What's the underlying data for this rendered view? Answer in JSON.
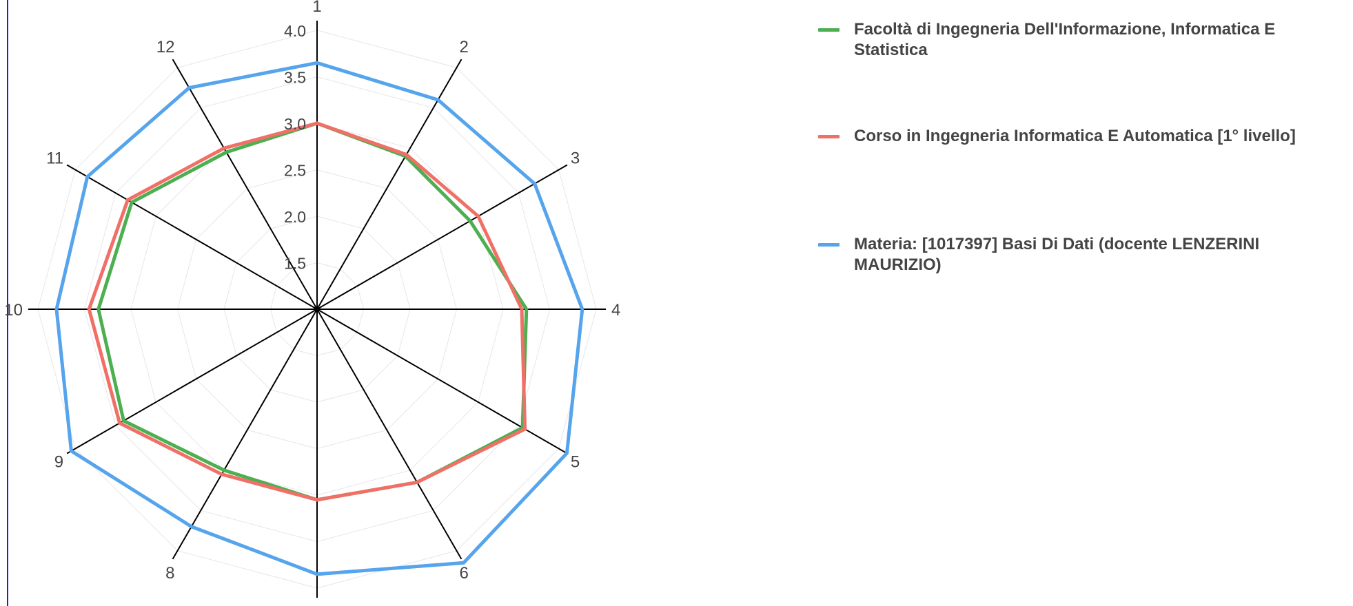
{
  "chart_data": {
    "type": "radar",
    "axes": [
      "1",
      "2",
      "3",
      "4",
      "5",
      "6",
      "7",
      "8",
      "9",
      "10",
      "11",
      "12"
    ],
    "radial_ticks": [
      "1.5",
      "2.0",
      "2.5",
      "3.0",
      "3.5",
      "4.0"
    ],
    "radial_range": [
      1,
      4
    ],
    "grid": true,
    "legend_position": "right",
    "series": [
      {
        "name": "Facoltà di Ingegneria Dell'Informazione, Informatica E Statistica",
        "color": "#4caf50",
        "values": [
          3.0,
          2.9,
          2.9,
          3.25,
          3.55,
          3.15,
          3.05,
          3.0,
          3.4,
          3.35,
          3.3,
          2.95
        ]
      },
      {
        "name": "Corso in Ingegneria Informatica E Automatica [1° livello]",
        "color": "#f07068",
        "values": [
          3.0,
          2.92,
          3.0,
          3.2,
          3.58,
          3.15,
          3.05,
          3.05,
          3.45,
          3.45,
          3.35,
          3.0
        ]
      },
      {
        "name": "Materia: [1017397] Basi Di Dati (docente LENZERINI MAURIZIO)",
        "color": "#55a4ec",
        "values": [
          3.65,
          3.6,
          3.7,
          3.85,
          4.1,
          4.15,
          3.85,
          3.7,
          4.05,
          3.8,
          3.85,
          3.75
        ]
      }
    ]
  }
}
